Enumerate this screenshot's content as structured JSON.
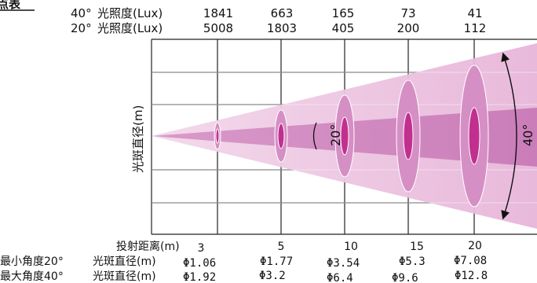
{
  "title_fragment": "点表",
  "lux_rows": [
    {
      "angle": "40°",
      "label": "光照度(Lux)",
      "values": [
        "1841",
        "663",
        "165",
        "73",
        "41"
      ]
    },
    {
      "angle": "20°",
      "label": "光照度(Lux)",
      "values": [
        "5008",
        "1803",
        "405",
        "200",
        "112"
      ]
    }
  ],
  "diagram": {
    "y_axis_label": "光斑直径(m)",
    "inner_angle_label": "20°",
    "outer_angle_label": "40°",
    "colors": {
      "outer_beam": "#e7b5d9",
      "inner_beam": "#c776b5",
      "spot_core": "#c2308f",
      "grid": "#222222"
    }
  },
  "bottom_table": {
    "distance_label": "投射距离(m)",
    "distances": [
      "3",
      "5",
      "10",
      "15",
      "20"
    ],
    "rows": [
      {
        "angle_label": "最小角度20°",
        "label": "光斑直径(m)",
        "values": [
          "Φ1.06",
          "Φ1.77",
          "Φ3.54",
          "Φ5.3",
          "Φ7.08"
        ]
      },
      {
        "angle_label": "最大角度40°",
        "label": "光斑直径(m)",
        "values": [
          "Φ1.92",
          "Φ3.2",
          "Φ6.4",
          "Φ9.6",
          "Φ12.8"
        ]
      }
    ]
  }
}
